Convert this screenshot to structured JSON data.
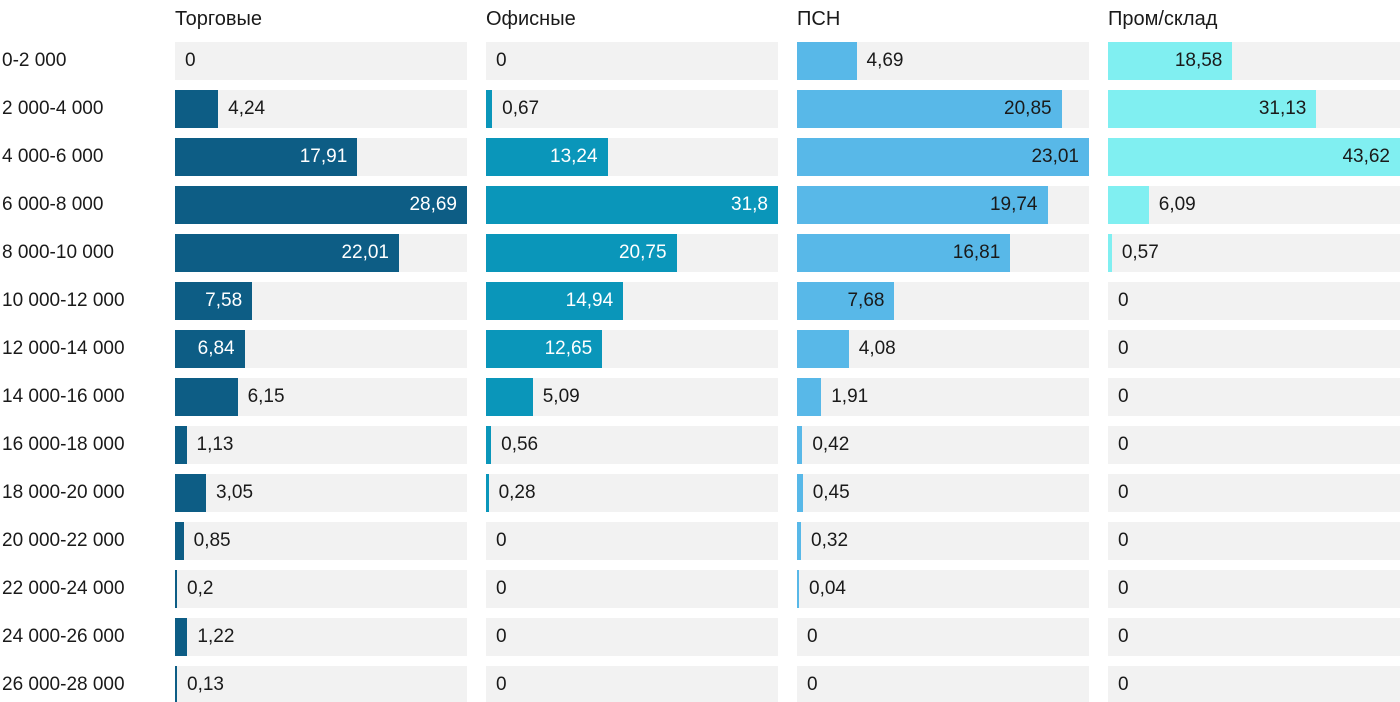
{
  "chart_data": {
    "type": "bar",
    "orientation": "horizontal",
    "grid": false,
    "legend_position": "column-headers-top",
    "track_color": "#f2f2f2",
    "outside_label_color": "#1a1a1a",
    "categories": [
      "0-2 000",
      "2 000-4 000",
      "4 000-6 000",
      "6 000-8 000",
      "8 000-10 000",
      "10 000-12 000",
      "12 000-14 000",
      "14 000-16 000",
      "16 000-18 000",
      "18 000-20 000",
      "20 000-22 000",
      "22 000-24 000",
      "24 000-26 000",
      "26 000-28 000"
    ],
    "series": [
      {
        "name": "Торговые",
        "color": "#0d5d85",
        "inside_label_color": "#ffffff",
        "values": [
          0,
          4.24,
          17.91,
          28.69,
          22.01,
          7.58,
          6.84,
          6.15,
          1.13,
          3.05,
          0.85,
          0.2,
          1.22,
          0.13
        ],
        "labels": [
          "0",
          "4,24",
          "17,91",
          "28,69",
          "22,01",
          "7,58",
          "6,84",
          "6,15",
          "1,13",
          "3,05",
          "0,85",
          "0,2",
          "1,22",
          "0,13"
        ]
      },
      {
        "name": "Офисные",
        "color": "#0a96ba",
        "inside_label_color": "#ffffff",
        "values": [
          0,
          0.67,
          13.24,
          31.8,
          20.75,
          14.94,
          12.65,
          5.09,
          0.56,
          0.28,
          0,
          0,
          0,
          0
        ],
        "labels": [
          "0",
          "0,67",
          "13,24",
          "31,8",
          "20,75",
          "14,94",
          "12,65",
          "5,09",
          "0,56",
          "0,28",
          "0",
          "0",
          "0",
          "0"
        ]
      },
      {
        "name": "ПСН",
        "color": "#58b8e8",
        "inside_label_color": "#1a1a1a",
        "values": [
          4.69,
          20.85,
          23.01,
          19.74,
          16.81,
          7.68,
          4.08,
          1.91,
          0.42,
          0.45,
          0.32,
          0.04,
          0,
          0
        ],
        "labels": [
          "4,69",
          "20,85",
          "23,01",
          "19,74",
          "16,81",
          "7,68",
          "4,08",
          "1,91",
          "0,42",
          "0,45",
          "0,32",
          "0,04",
          "0",
          "0"
        ]
      },
      {
        "name": "Пром/склад",
        "color": "#80eff1",
        "inside_label_color": "#1a1a1a",
        "values": [
          18.58,
          31.13,
          43.62,
          6.09,
          0.57,
          0,
          0,
          0,
          0,
          0,
          0,
          0,
          0,
          0
        ],
        "labels": [
          "18,58",
          "31,13",
          "43,62",
          "6,09",
          "0,57",
          "0",
          "0",
          "0",
          "0",
          "0",
          "0",
          "0",
          "0",
          "0"
        ]
      }
    ]
  }
}
